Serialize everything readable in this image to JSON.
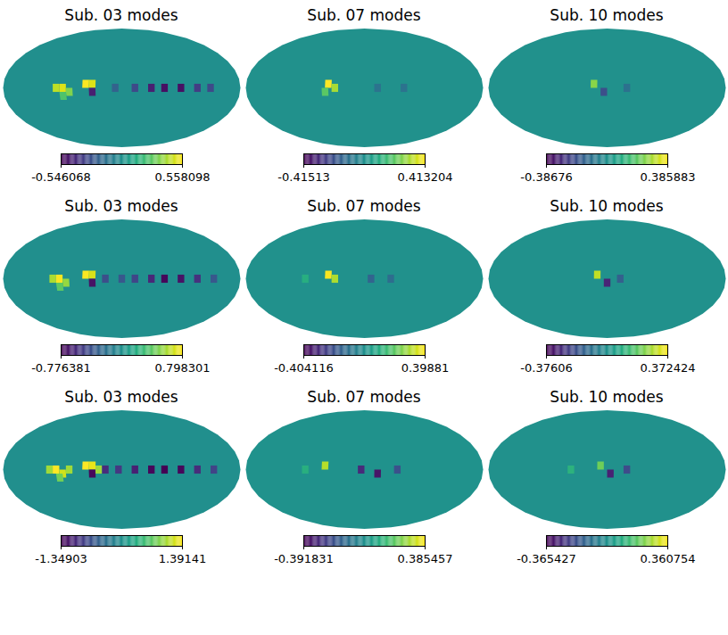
{
  "chart_data": [
    {
      "type": "heatmap",
      "title": "Sub. 03 modes",
      "background": 0,
      "colorbar": {
        "range": [
          -0.546068,
          0.558098
        ],
        "ticks": [
          -0.546068,
          0.558098
        ]
      },
      "cells": [
        {
          "lon": 100,
          "lat": 0,
          "value": 0.45
        },
        {
          "lon": 90,
          "lat": 0,
          "value": 0.5
        },
        {
          "lon": 80,
          "lat": -5,
          "value": 0.35
        },
        {
          "lon": 90,
          "lat": -10,
          "value": 0.25
        },
        {
          "lon": 55,
          "lat": 5,
          "value": 0.55
        },
        {
          "lon": 45,
          "lat": 5,
          "value": 0.5
        },
        {
          "lon": 45,
          "lat": -5,
          "value": -0.45
        },
        {
          "lon": 10,
          "lat": 0,
          "value": -0.2
        },
        {
          "lon": -20,
          "lat": 0,
          "value": -0.3
        },
        {
          "lon": -45,
          "lat": 0,
          "value": -0.45
        },
        {
          "lon": -65,
          "lat": 0,
          "value": -0.5
        },
        {
          "lon": -90,
          "lat": 0,
          "value": -0.5
        },
        {
          "lon": -115,
          "lat": 0,
          "value": -0.35
        },
        {
          "lon": -135,
          "lat": 0,
          "value": -0.3
        }
      ]
    },
    {
      "type": "heatmap",
      "title": "Sub. 07 modes",
      "background": 0,
      "colorbar": {
        "range": [
          -0.41513,
          0.413204
        ],
        "ticks": [
          -0.41513,
          0.413204
        ]
      },
      "cells": [
        {
          "lon": 55,
          "lat": 5,
          "value": 0.41
        },
        {
          "lon": 45,
          "lat": 0,
          "value": 0.3
        },
        {
          "lon": 60,
          "lat": -5,
          "value": 0.2
        },
        {
          "lon": -20,
          "lat": 0,
          "value": -0.1
        },
        {
          "lon": -60,
          "lat": 0,
          "value": -0.1
        }
      ]
    },
    {
      "type": "heatmap",
      "title": "Sub. 10 modes",
      "background": 0,
      "colorbar": {
        "range": [
          -0.38676,
          0.385883
        ],
        "ticks": [
          -0.38676,
          0.385883
        ]
      },
      "cells": [
        {
          "lon": 20,
          "lat": 5,
          "value": 0.25
        },
        {
          "lon": 5,
          "lat": -5,
          "value": -0.2
        },
        {
          "lon": -30,
          "lat": 0,
          "value": -0.1
        }
      ]
    },
    {
      "type": "heatmap",
      "title": "Sub. 03 modes",
      "background": 0,
      "colorbar": {
        "range": [
          -0.776381,
          0.798301
        ],
        "ticks": [
          -0.776381,
          0.798301
        ]
      },
      "cells": [
        {
          "lon": 105,
          "lat": 0,
          "value": 0.6
        },
        {
          "lon": 95,
          "lat": 0,
          "value": 0.78
        },
        {
          "lon": 85,
          "lat": -5,
          "value": 0.55
        },
        {
          "lon": 95,
          "lat": -10,
          "value": 0.4
        },
        {
          "lon": 55,
          "lat": 5,
          "value": 0.79
        },
        {
          "lon": 45,
          "lat": 5,
          "value": 0.7
        },
        {
          "lon": 45,
          "lat": -5,
          "value": -0.7
        },
        {
          "lon": 25,
          "lat": 0,
          "value": -0.4
        },
        {
          "lon": 0,
          "lat": 0,
          "value": -0.35
        },
        {
          "lon": -20,
          "lat": 0,
          "value": -0.45
        },
        {
          "lon": -45,
          "lat": 0,
          "value": -0.6
        },
        {
          "lon": -65,
          "lat": 0,
          "value": -0.75
        },
        {
          "lon": -90,
          "lat": 0,
          "value": -0.7
        },
        {
          "lon": -115,
          "lat": 0,
          "value": -0.55
        },
        {
          "lon": -140,
          "lat": 0,
          "value": -0.35
        }
      ]
    },
    {
      "type": "heatmap",
      "title": "Sub. 07 modes",
      "background": 0,
      "colorbar": {
        "range": [
          -0.404116,
          0.39881
        ],
        "ticks": [
          -0.404116,
          0.39881
        ]
      },
      "cells": [
        {
          "lon": 55,
          "lat": 5,
          "value": 0.39
        },
        {
          "lon": 45,
          "lat": 0,
          "value": 0.3
        },
        {
          "lon": -10,
          "lat": 0,
          "value": -0.15
        },
        {
          "lon": -40,
          "lat": 0,
          "value": -0.12
        },
        {
          "lon": 90,
          "lat": 0,
          "value": 0.1
        }
      ]
    },
    {
      "type": "heatmap",
      "title": "Sub. 10 modes",
      "background": 0,
      "colorbar": {
        "range": [
          -0.37606,
          0.372424
        ],
        "ticks": [
          -0.37606,
          0.372424
        ]
      },
      "cells": [
        {
          "lon": 15,
          "lat": 5,
          "value": 0.3
        },
        {
          "lon": 0,
          "lat": -5,
          "value": -0.3
        },
        {
          "lon": -20,
          "lat": 0,
          "value": -0.15
        }
      ]
    },
    {
      "type": "heatmap",
      "title": "Sub. 03 modes",
      "background": 0,
      "colorbar": {
        "range": [
          -1.34903,
          1.39141
        ],
        "ticks": [
          -1.34903,
          1.39141
        ]
      },
      "cells": [
        {
          "lon": 110,
          "lat": 0,
          "value": 1.0
        },
        {
          "lon": 100,
          "lat": 0,
          "value": 1.39
        },
        {
          "lon": 90,
          "lat": -5,
          "value": 1.2
        },
        {
          "lon": 80,
          "lat": 0,
          "value": 1.0
        },
        {
          "lon": 95,
          "lat": -10,
          "value": 0.8
        },
        {
          "lon": 55,
          "lat": 5,
          "value": 1.39
        },
        {
          "lon": 45,
          "lat": 5,
          "value": 1.3
        },
        {
          "lon": 35,
          "lat": 0,
          "value": 1.0
        },
        {
          "lon": 45,
          "lat": -5,
          "value": -1.3
        },
        {
          "lon": 25,
          "lat": 0,
          "value": -1.0
        },
        {
          "lon": 5,
          "lat": 0,
          "value": -0.9
        },
        {
          "lon": -20,
          "lat": 0,
          "value": -1.1
        },
        {
          "lon": -45,
          "lat": 0,
          "value": -1.3
        },
        {
          "lon": -65,
          "lat": 0,
          "value": -1.34
        },
        {
          "lon": -90,
          "lat": 0,
          "value": -1.3
        },
        {
          "lon": -115,
          "lat": 0,
          "value": -1.0
        },
        {
          "lon": -140,
          "lat": 0,
          "value": -0.8
        }
      ]
    },
    {
      "type": "heatmap",
      "title": "Sub. 07 modes",
      "background": 0,
      "colorbar": {
        "range": [
          -0.391831,
          0.385457
        ],
        "ticks": [
          -0.391831,
          0.385457
        ]
      },
      "cells": [
        {
          "lon": 60,
          "lat": 5,
          "value": 0.3
        },
        {
          "lon": 5,
          "lat": 0,
          "value": -0.3
        },
        {
          "lon": -20,
          "lat": -5,
          "value": -0.35
        },
        {
          "lon": -50,
          "lat": 0,
          "value": -0.2
        },
        {
          "lon": 90,
          "lat": 0,
          "value": 0.1
        }
      ]
    },
    {
      "type": "heatmap",
      "title": "Sub. 10 modes",
      "background": 0,
      "colorbar": {
        "range": [
          -0.365427,
          0.360754
        ],
        "ticks": [
          -0.365427,
          0.360754
        ]
      },
      "cells": [
        {
          "lon": 10,
          "lat": 5,
          "value": 0.2
        },
        {
          "lon": -5,
          "lat": -5,
          "value": -0.3
        },
        {
          "lon": -30,
          "lat": 0,
          "value": -0.2
        },
        {
          "lon": 55,
          "lat": 0,
          "value": 0.1
        }
      ]
    }
  ]
}
